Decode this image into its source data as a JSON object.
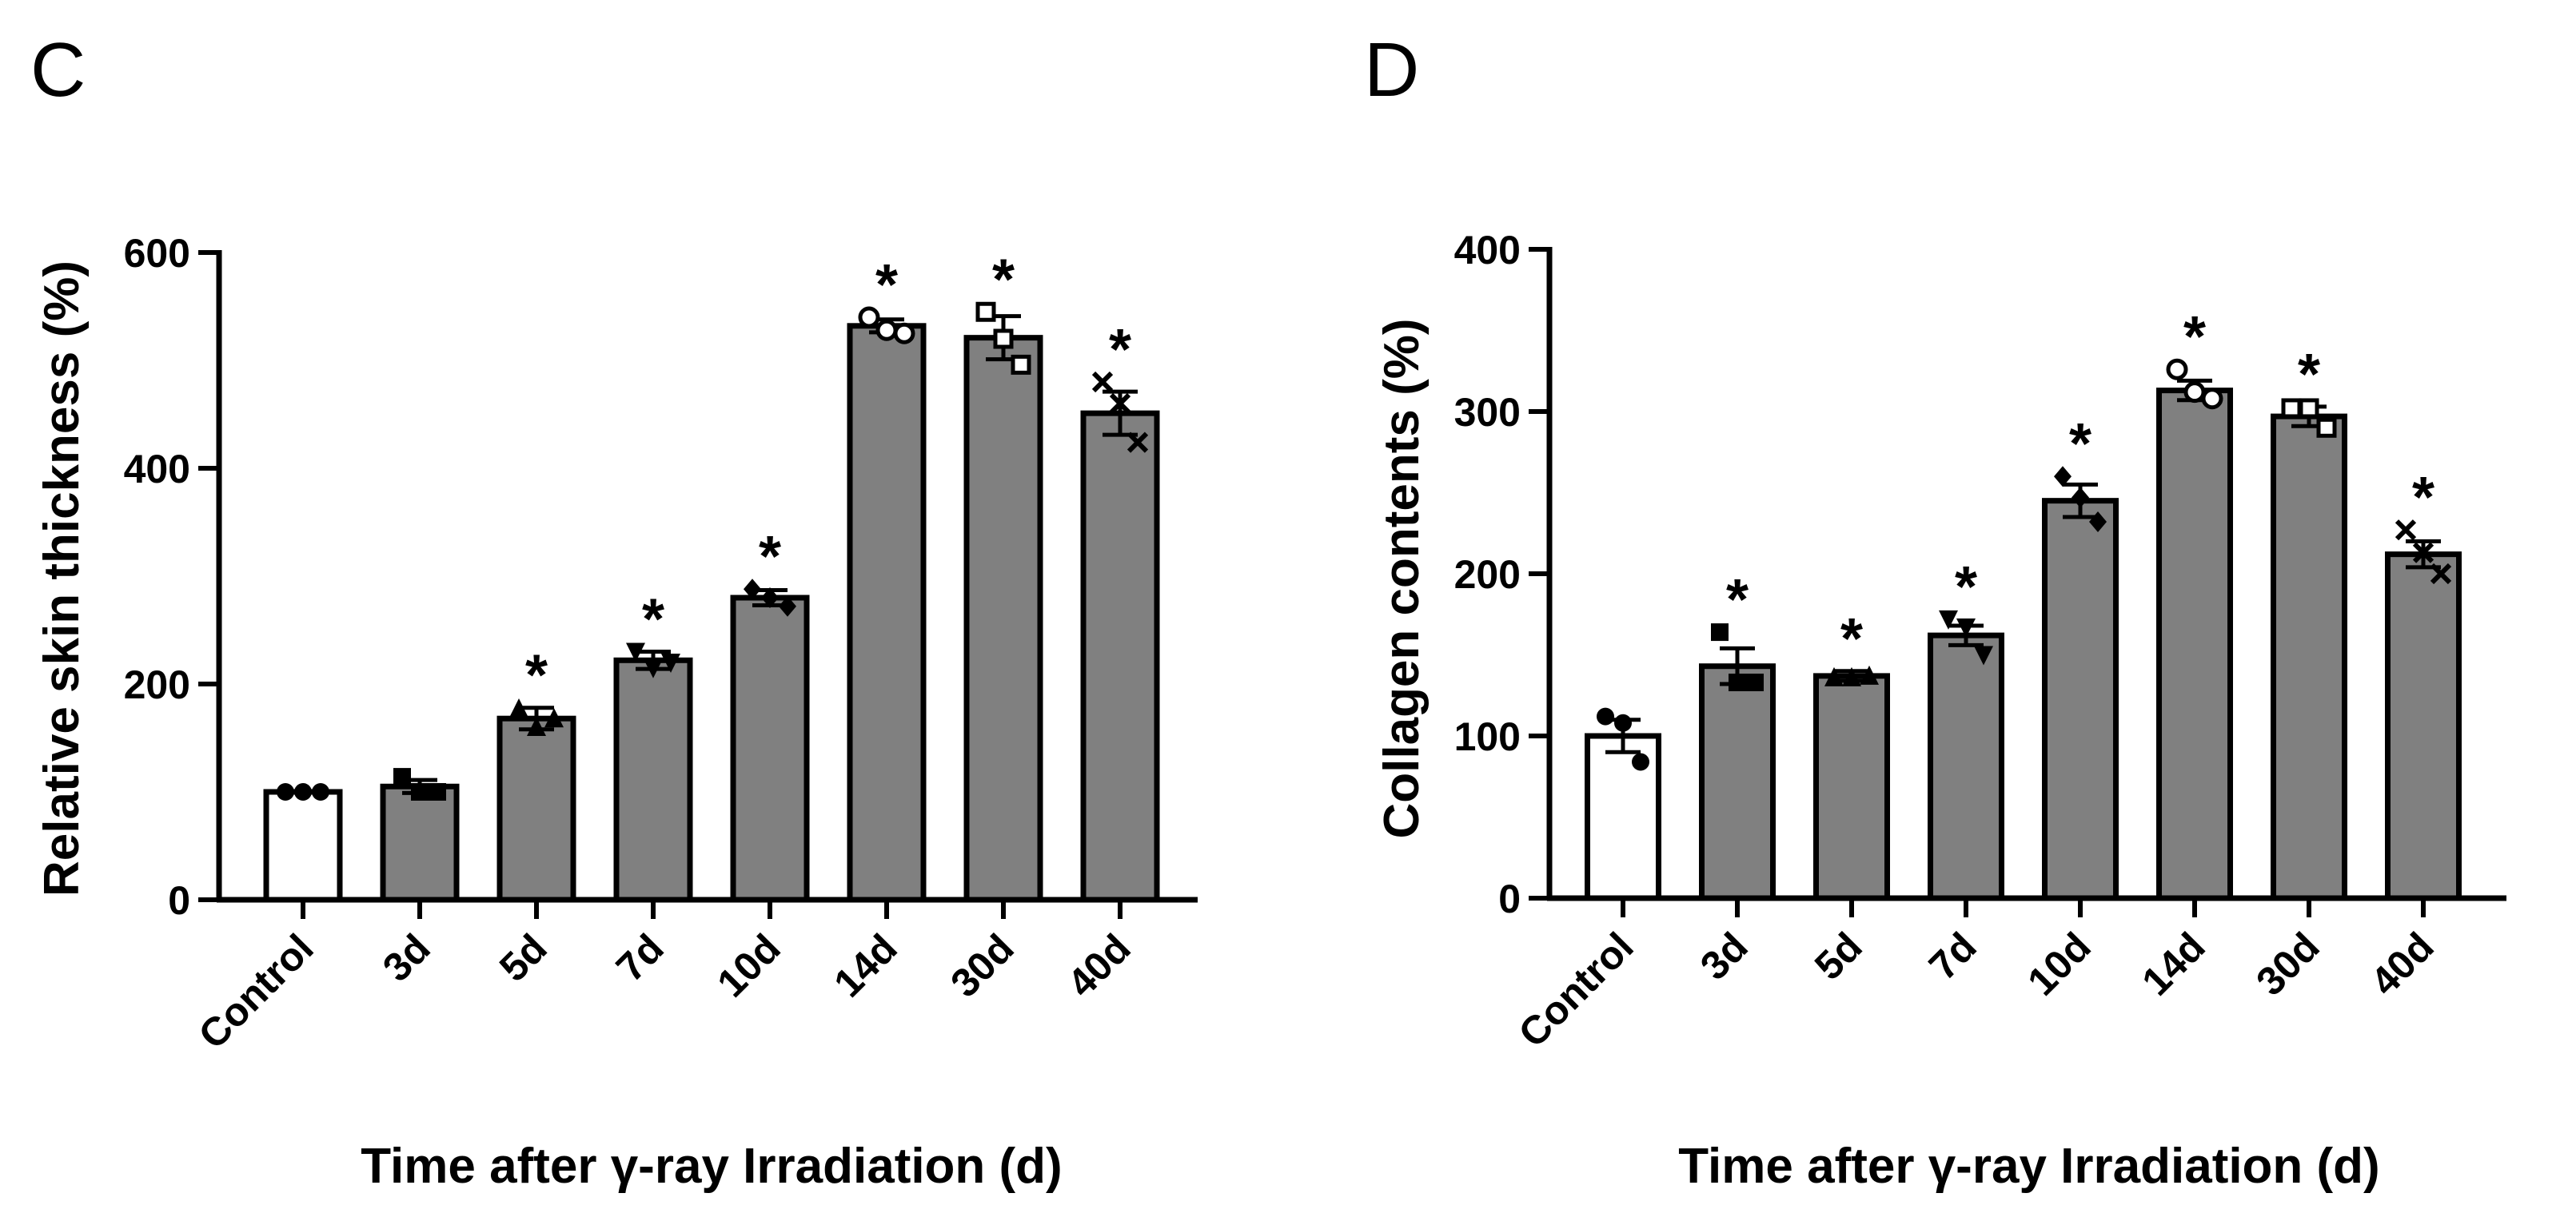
{
  "colors": {
    "control_fill": "#ffffff",
    "treated_fill": "#808080",
    "stroke": "#000000"
  },
  "chart_data": [
    {
      "panel": "C",
      "type": "bar",
      "categories": [
        "Control",
        "3d",
        "5d",
        "7d",
        "10d",
        "14d",
        "30d",
        "40d"
      ],
      "values": [
        100,
        105,
        168,
        222,
        280,
        532,
        521,
        451
      ],
      "errors": [
        0,
        6,
        10,
        8,
        7,
        6,
        20,
        20
      ],
      "points": [
        [
          100,
          100,
          100
        ],
        [
          114,
          100,
          100
        ],
        [
          177,
          160,
          168
        ],
        [
          230,
          215,
          220
        ],
        [
          288,
          280,
          272
        ],
        [
          540,
          528,
          525
        ],
        [
          545,
          520,
          496
        ],
        [
          480,
          460,
          424
        ]
      ],
      "markers": [
        "circle",
        "square",
        "triangle",
        "triangle-down",
        "diamond",
        "circle-open",
        "square-open",
        "cross"
      ],
      "significance": [
        "",
        "",
        "*",
        "*",
        "*",
        "*",
        "*",
        "*"
      ],
      "title": "",
      "xlabel": "Time after γ-ray Irradiation (d)",
      "ylabel": "Relative skin thickness (%)",
      "ylim": [
        0,
        600
      ],
      "yticks": [
        0,
        200,
        400,
        600
      ],
      "grid": false
    },
    {
      "panel": "D",
      "type": "bar",
      "categories": [
        "Control",
        "3d",
        "5d",
        "7d",
        "10d",
        "14d",
        "30d",
        "40d"
      ],
      "values": [
        100,
        143,
        137,
        162,
        245,
        313,
        297,
        212
      ],
      "errors": [
        10,
        11,
        3,
        6,
        10,
        6,
        6,
        8
      ],
      "points": [
        [
          112,
          108,
          84
        ],
        [
          164,
          133,
          133
        ],
        [
          136,
          136,
          137
        ],
        [
          172,
          167,
          150
        ],
        [
          260,
          247,
          232
        ],
        [
          326,
          312,
          308
        ],
        [
          302,
          302,
          290
        ],
        [
          227,
          213,
          200
        ]
      ],
      "markers": [
        "circle",
        "square",
        "triangle",
        "triangle-down",
        "diamond",
        "circle-open",
        "square-open",
        "cross"
      ],
      "significance": [
        "",
        "*",
        "*",
        "*",
        "*",
        "*",
        "*",
        "*"
      ],
      "title": "",
      "xlabel": "Time after γ-ray Irradiation (d)",
      "ylabel": "Collagen contents (%)",
      "ylim": [
        0,
        400
      ],
      "yticks": [
        0,
        100,
        200,
        300,
        400
      ],
      "grid": false
    }
  ]
}
